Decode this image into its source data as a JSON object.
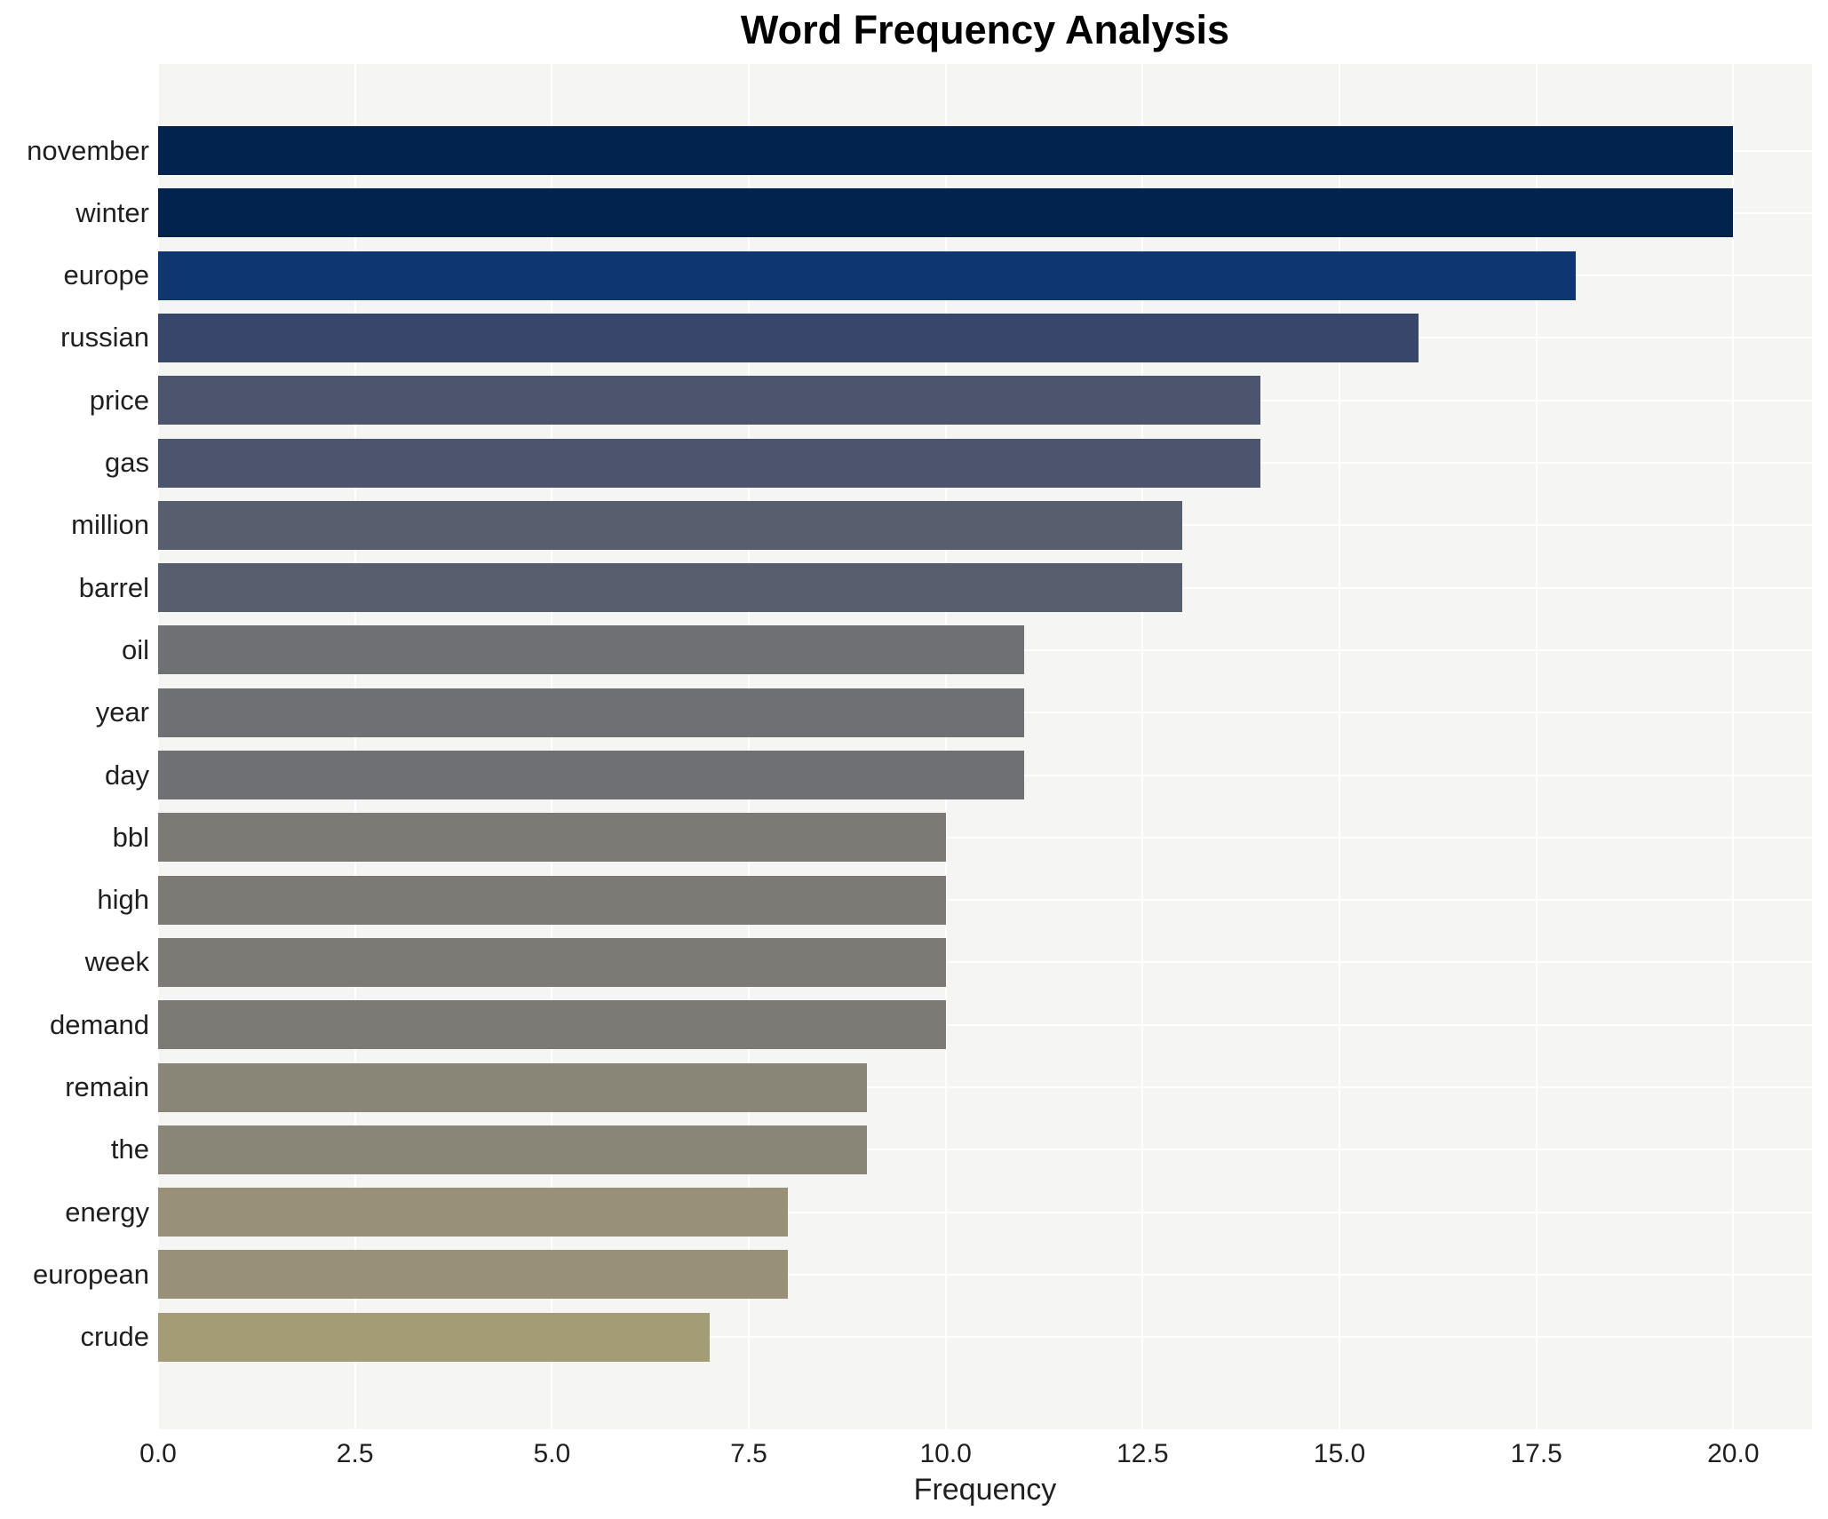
{
  "title": "Word Frequency Analysis",
  "axis": {
    "xlabel": "Frequency",
    "xtick_labels": [
      "0.0",
      "2.5",
      "5.0",
      "7.5",
      "10.0",
      "12.5",
      "15.0",
      "17.5",
      "20.0"
    ]
  },
  "chart_data": {
    "type": "bar",
    "orientation": "horizontal",
    "title": "Word Frequency Analysis",
    "xlabel": "Frequency",
    "ylabel": "",
    "categories": [
      "november",
      "winter",
      "europe",
      "russian",
      "price",
      "gas",
      "million",
      "barrel",
      "oil",
      "year",
      "day",
      "bbl",
      "high",
      "week",
      "demand",
      "remain",
      "the",
      "energy",
      "european",
      "crude"
    ],
    "values": [
      20,
      20,
      18,
      16,
      14,
      14,
      13,
      13,
      11,
      11,
      11,
      10,
      10,
      10,
      10,
      9,
      9,
      8,
      8,
      7
    ],
    "bar_colors": [
      "#01234e",
      "#01234e",
      "#0e3671",
      "#38466c",
      "#4d556e",
      "#4d556e",
      "#575e6d",
      "#575e6d",
      "#6f7073",
      "#6f7073",
      "#6f7073",
      "#7b7a74",
      "#7b7a74",
      "#7b7a74",
      "#7b7a74",
      "#898677",
      "#898677",
      "#989177",
      "#989177",
      "#a49c74"
    ],
    "xlim": [
      0,
      21
    ],
    "xticks": [
      0,
      2.5,
      5,
      7.5,
      10,
      12.5,
      15,
      17.5,
      20
    ],
    "grid": true,
    "legend_position": "none",
    "plot_background": "#f5f5f4",
    "grid_color": "#ffffff",
    "text_color": "#1f1f1f"
  }
}
